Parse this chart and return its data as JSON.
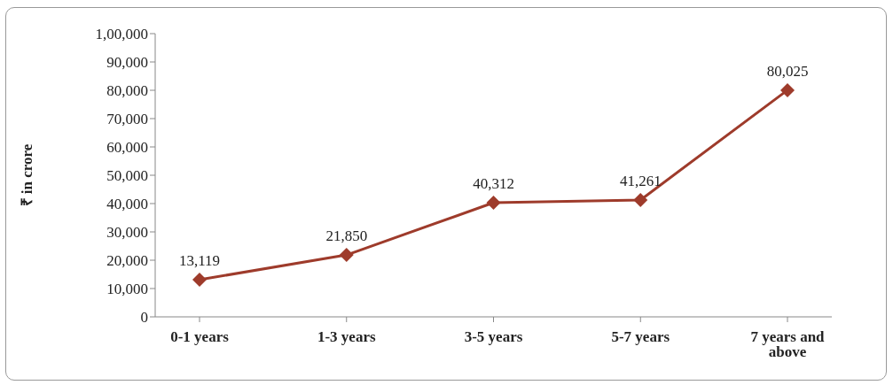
{
  "chart_data": {
    "type": "line",
    "ylabel": "₹ in crore",
    "categories": [
      "0-1 years",
      "1-3 years",
      "3-5 years",
      "5-7 years",
      "7 years and above"
    ],
    "series": [
      {
        "color": "#9e3b2b",
        "values": [
          13119,
          21850,
          40312,
          41261,
          80025
        ],
        "value_labels": [
          "13,119",
          "21,850",
          "40,312",
          "41,261",
          "80,025"
        ]
      }
    ],
    "ylim": [
      0,
      100000
    ],
    "yticks": [
      0,
      {
        "value": 10000,
        "label": "10,000"
      },
      {
        "value": 20000,
        "label": "20,000"
      },
      {
        "value": 30000,
        "label": "30,000"
      },
      {
        "value": 40000,
        "label": "40,000"
      },
      {
        "value": 50000,
        "label": "50,000"
      },
      {
        "value": 60000,
        "label": "60,000"
      },
      {
        "value": 70000,
        "label": "70,000"
      },
      {
        "value": 80000,
        "label": "80,000"
      },
      {
        "value": 90000,
        "label": "90,000"
      },
      {
        "value": 100000,
        "label": "1,00,000"
      }
    ],
    "grid": false,
    "legend": false,
    "marker": "diamond",
    "line_style": "solid"
  }
}
